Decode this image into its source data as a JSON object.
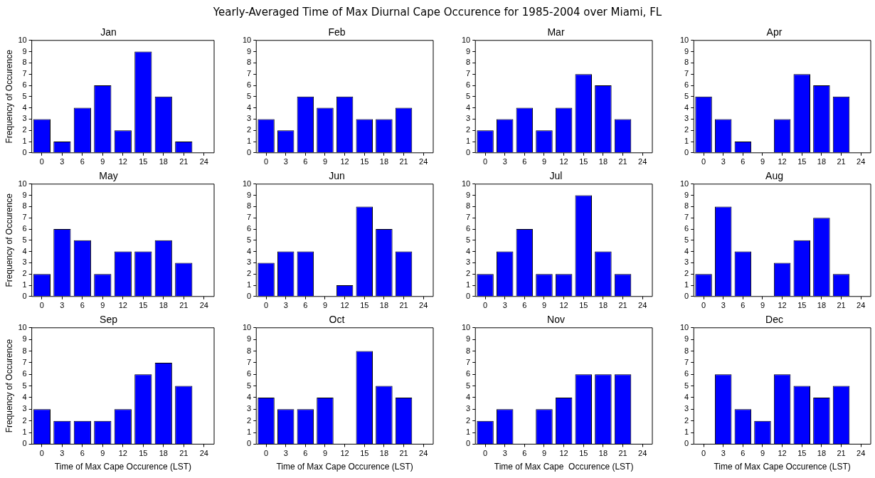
{
  "chart_data": [
    {
      "type": "bar",
      "title": "Jan",
      "annotations": [
        "Yearly-Averaged Time of Max Diurnal Cape Occurence for 1985-2004 over Miami, FL"
      ],
      "ylabel": "Frequency of Occurence",
      "categories": [
        "0",
        "3",
        "6",
        "9",
        "12",
        "15",
        "18",
        "21",
        "24"
      ],
      "values": [
        3,
        1,
        4,
        6,
        2,
        9,
        5,
        1,
        0
      ],
      "color": "#0000ff",
      "ylim": [
        0,
        10
      ],
      "yticks": [
        0,
        1,
        2,
        3,
        4,
        5,
        6,
        7,
        8,
        9,
        10
      ]
    },
    {
      "type": "bar",
      "title": "Feb",
      "categories": [
        "0",
        "3",
        "6",
        "9",
        "12",
        "15",
        "18",
        "21",
        "24"
      ],
      "values": [
        3,
        2,
        5,
        4,
        5,
        3,
        3,
        4,
        0
      ],
      "color": "#0000ff",
      "ylim": [
        0,
        10
      ],
      "yticks": [
        0,
        1,
        2,
        3,
        4,
        5,
        6,
        7,
        8,
        9,
        10
      ]
    },
    {
      "type": "bar",
      "title": "Mar",
      "categories": [
        "0",
        "3",
        "6",
        "9",
        "12",
        "15",
        "18",
        "21",
        "24"
      ],
      "values": [
        2,
        3,
        4,
        2,
        4,
        7,
        6,
        3,
        0
      ],
      "color": "#0000ff",
      "ylim": [
        0,
        10
      ],
      "yticks": [
        0,
        1,
        2,
        3,
        4,
        5,
        6,
        7,
        8,
        9,
        10
      ]
    },
    {
      "type": "bar",
      "title": "Apr",
      "categories": [
        "0",
        "3",
        "6",
        "9",
        "12",
        "15",
        "18",
        "21",
        "24"
      ],
      "values": [
        5,
        3,
        1,
        0,
        3,
        7,
        6,
        5,
        0
      ],
      "color": "#0000ff",
      "ylim": [
        0,
        10
      ],
      "yticks": [
        0,
        1,
        2,
        3,
        4,
        5,
        6,
        7,
        8,
        9,
        10
      ]
    },
    {
      "type": "bar",
      "title": "May",
      "ylabel": "Frequency of Occurence",
      "categories": [
        "0",
        "3",
        "6",
        "9",
        "12",
        "15",
        "18",
        "21",
        "24"
      ],
      "values": [
        2,
        6,
        5,
        2,
        4,
        4,
        5,
        3,
        0
      ],
      "color": "#0000ff",
      "ylim": [
        0,
        10
      ],
      "yticks": [
        0,
        1,
        2,
        3,
        4,
        5,
        6,
        7,
        8,
        9,
        10
      ]
    },
    {
      "type": "bar",
      "title": "Jun",
      "categories": [
        "0",
        "3",
        "6",
        "9",
        "12",
        "15",
        "18",
        "21",
        "24"
      ],
      "values": [
        3,
        4,
        4,
        0,
        1,
        8,
        6,
        4,
        0
      ],
      "color": "#0000ff",
      "ylim": [
        0,
        10
      ],
      "yticks": [
        0,
        1,
        2,
        3,
        4,
        5,
        6,
        7,
        8,
        9,
        10
      ]
    },
    {
      "type": "bar",
      "title": "Jul",
      "categories": [
        "0",
        "3",
        "6",
        "9",
        "12",
        "15",
        "18",
        "21",
        "24"
      ],
      "values": [
        2,
        4,
        6,
        2,
        2,
        9,
        4,
        2,
        0
      ],
      "color": "#0000ff",
      "ylim": [
        0,
        10
      ],
      "yticks": [
        0,
        1,
        2,
        3,
        4,
        5,
        6,
        7,
        8,
        9,
        10
      ]
    },
    {
      "type": "bar",
      "title": "Aug",
      "categories": [
        "0",
        "3",
        "6",
        "9",
        "12",
        "15",
        "18",
        "21",
        "24"
      ],
      "values": [
        2,
        8,
        4,
        0,
        3,
        5,
        7,
        2,
        0
      ],
      "color": "#0000ff",
      "ylim": [
        0,
        10
      ],
      "yticks": [
        0,
        1,
        2,
        3,
        4,
        5,
        6,
        7,
        8,
        9,
        10
      ]
    },
    {
      "type": "bar",
      "title": "Sep",
      "ylabel": "Frequency of Occurence",
      "xlabel": "Time of Max Cape Occurence (LST)",
      "categories": [
        "0",
        "3",
        "6",
        "9",
        "12",
        "15",
        "18",
        "21",
        "24"
      ],
      "values": [
        3,
        2,
        2,
        2,
        3,
        6,
        7,
        5,
        0
      ],
      "color": "#0000ff",
      "ylim": [
        0,
        10
      ],
      "yticks": [
        0,
        1,
        2,
        3,
        4,
        5,
        6,
        7,
        8,
        9,
        10
      ]
    },
    {
      "type": "bar",
      "title": "Oct",
      "xlabel": "Time of Max Cape Occurence (LST)",
      "categories": [
        "0",
        "3",
        "6",
        "9",
        "12",
        "15",
        "18",
        "21",
        "24"
      ],
      "values": [
        4,
        3,
        3,
        4,
        0,
        8,
        5,
        4,
        0
      ],
      "color": "#0000ff",
      "ylim": [
        0,
        10
      ],
      "yticks": [
        0,
        1,
        2,
        3,
        4,
        5,
        6,
        7,
        8,
        9,
        10
      ]
    },
    {
      "type": "bar",
      "title": "Nov",
      "xlabel": "Time of Max Cape  Occurence (LST)",
      "categories": [
        "0",
        "3",
        "6",
        "9",
        "12",
        "15",
        "18",
        "21",
        "24"
      ],
      "values": [
        2,
        3,
        0,
        3,
        4,
        6,
        6,
        6,
        0
      ],
      "color": "#0000ff",
      "ylim": [
        0,
        10
      ],
      "yticks": [
        0,
        1,
        2,
        3,
        4,
        5,
        6,
        7,
        8,
        9,
        10
      ]
    },
    {
      "type": "bar",
      "title": "Dec",
      "xlabel": "Time of Max Cape Occurence (LST)",
      "categories": [
        "0",
        "3",
        "6",
        "9",
        "12",
        "15",
        "18",
        "21",
        "24"
      ],
      "values": [
        0,
        6,
        3,
        2,
        6,
        5,
        4,
        5,
        0
      ],
      "color": "#0000ff",
      "ylim": [
        0,
        10
      ],
      "yticks": [
        0,
        1,
        2,
        3,
        4,
        5,
        6,
        7,
        8,
        9,
        10
      ]
    }
  ]
}
